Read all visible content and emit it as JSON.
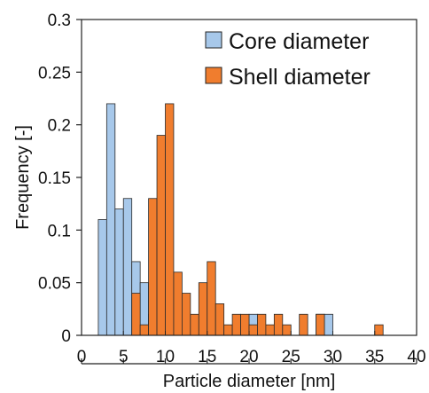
{
  "chart_data": {
    "type": "bar",
    "subtype": "overlapping-histogram",
    "title": "",
    "xlabel": "Particle diameter [nm]",
    "ylabel": "Frequency [-]",
    "xlim": [
      0,
      40
    ],
    "ylim": [
      0,
      0.3
    ],
    "x_ticks": [
      "0",
      "5",
      "10",
      "15",
      "20",
      "25",
      "30",
      "35",
      "40"
    ],
    "y_ticks": [
      "0",
      "0.05",
      "0.1",
      "0.15",
      "0.2",
      "0.25",
      "0.3"
    ],
    "bin_width": 1,
    "grid": false,
    "legend_position": "top-right",
    "series": [
      {
        "name": "Core diameter",
        "color": "#a7c8ea",
        "bins": [
          {
            "x": 2,
            "value": 0.11
          },
          {
            "x": 3,
            "value": 0.22
          },
          {
            "x": 4,
            "value": 0.12
          },
          {
            "x": 5,
            "value": 0.13
          },
          {
            "x": 6,
            "value": 0.07
          },
          {
            "x": 7,
            "value": 0.05
          },
          {
            "x": 8,
            "value": 0.02
          },
          {
            "x": 20,
            "value": 0.02
          },
          {
            "x": 28,
            "value": 0.02
          },
          {
            "x": 29,
            "value": 0.02
          }
        ]
      },
      {
        "name": "Shell diameter",
        "color": "#f07d2e",
        "bins": [
          {
            "x": 6,
            "value": 0.04
          },
          {
            "x": 7,
            "value": 0.01
          },
          {
            "x": 8,
            "value": 0.13
          },
          {
            "x": 9,
            "value": 0.19
          },
          {
            "x": 10,
            "value": 0.22
          },
          {
            "x": 11,
            "value": 0.06
          },
          {
            "x": 12,
            "value": 0.04
          },
          {
            "x": 13,
            "value": 0.02
          },
          {
            "x": 14,
            "value": 0.05
          },
          {
            "x": 15,
            "value": 0.07
          },
          {
            "x": 16,
            "value": 0.03
          },
          {
            "x": 17,
            "value": 0.01
          },
          {
            "x": 18,
            "value": 0.02
          },
          {
            "x": 19,
            "value": 0.02
          },
          {
            "x": 20,
            "value": 0.01
          },
          {
            "x": 21,
            "value": 0.02
          },
          {
            "x": 22,
            "value": 0.01
          },
          {
            "x": 23,
            "value": 0.02
          },
          {
            "x": 24,
            "value": 0.01
          },
          {
            "x": 26,
            "value": 0.02
          },
          {
            "x": 28,
            "value": 0.02
          },
          {
            "x": 35,
            "value": 0.01
          }
        ]
      }
    ]
  }
}
